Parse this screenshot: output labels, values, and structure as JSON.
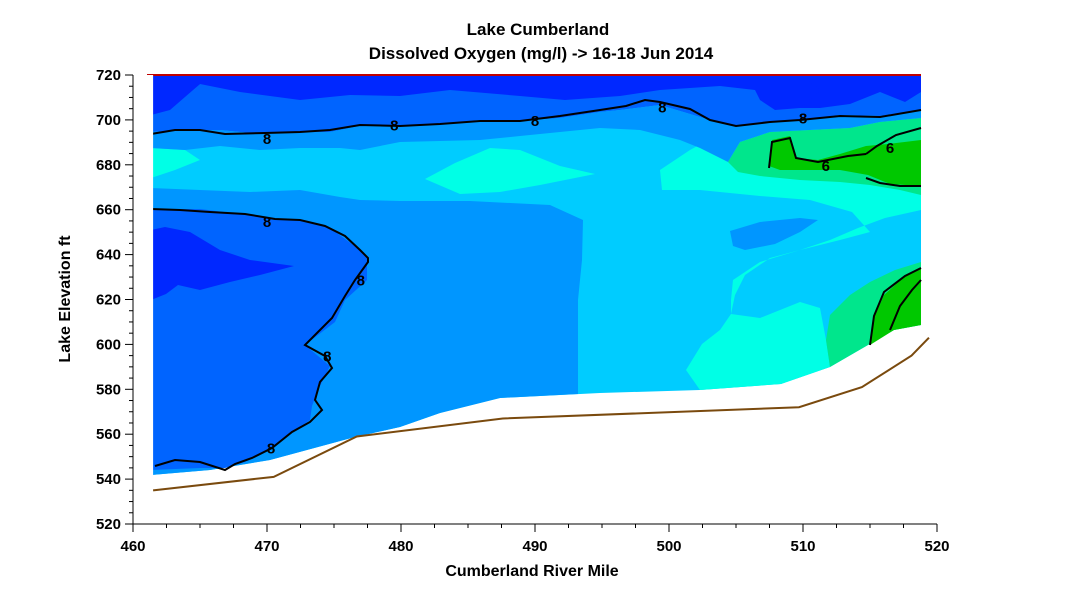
{
  "chart_data": {
    "type": "heatmap",
    "title": "Lake Cumberland",
    "subtitle": "Dissolved Oxygen (mg/l) -> 16-18 Jun 2014",
    "xlabel": "Cumberland River Mile",
    "ylabel": "Lake Elevation ft",
    "xlim": [
      460,
      520
    ],
    "ylim": [
      520,
      720
    ],
    "x_ticks": [
      "460",
      "470",
      "480",
      "490",
      "500",
      "510",
      "520"
    ],
    "y_ticks": [
      "520",
      "540",
      "560",
      "580",
      "600",
      "620",
      "640",
      "660",
      "680",
      "700",
      "720"
    ],
    "color_levels": [
      {
        "min": 5,
        "max": 6,
        "color": "#00c800"
      },
      {
        "min": 6,
        "max": 6.5,
        "color": "#00e68c"
      },
      {
        "min": 6.5,
        "max": 7,
        "color": "#00ffe6"
      },
      {
        "min": 7,
        "max": 7.5,
        "color": "#00ccff"
      },
      {
        "min": 7.5,
        "max": 8,
        "color": "#0096ff"
      },
      {
        "min": 8,
        "max": 8.5,
        "color": "#0064ff"
      },
      {
        "min": 8.5,
        "max": 9.5,
        "color": "#0028ff"
      }
    ],
    "contour_labels": [
      {
        "text": "8",
        "x": 470.0,
        "y": 692
      },
      {
        "text": "8",
        "x": 479.5,
        "y": 698
      },
      {
        "text": "8",
        "x": 490.0,
        "y": 700
      },
      {
        "text": "8",
        "x": 499.5,
        "y": 706
      },
      {
        "text": "8",
        "x": 510.0,
        "y": 701
      },
      {
        "text": "6",
        "x": 511.7,
        "y": 680
      },
      {
        "text": "6",
        "x": 516.5,
        "y": 688
      },
      {
        "text": "8",
        "x": 470.0,
        "y": 655
      },
      {
        "text": "8",
        "x": 477.0,
        "y": 629
      },
      {
        "text": "8",
        "x": 474.5,
        "y": 595
      },
      {
        "text": "8",
        "x": 470.3,
        "y": 554
      }
    ],
    "lake_bottom": {
      "x": [
        461.5,
        470.5,
        476.7,
        487.6,
        509.7,
        514.4,
        518.1,
        519.4
      ],
      "y": [
        535,
        541,
        559,
        567,
        572,
        581,
        595,
        603
      ]
    },
    "data_extent": {
      "x": [
        461.5,
        519.2
      ],
      "y": [
        541,
        720
      ]
    }
  }
}
